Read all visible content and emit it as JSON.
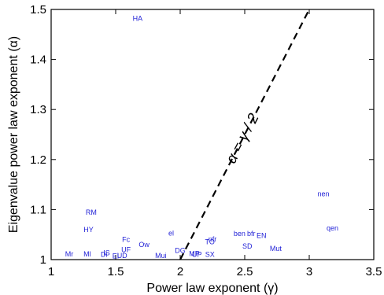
{
  "chart_data": {
    "type": "scatter",
    "xlabel": "Power law exponent (γ)",
    "ylabel": "Eigenvalue power law exponent (α)",
    "xlim": [
      1,
      3.5
    ],
    "ylim": [
      1,
      1.5
    ],
    "xticks": [
      1,
      1.5,
      2,
      2.5,
      3,
      3.5
    ],
    "xtick_labels": [
      "1",
      "1.5",
      "2",
      "2.5",
      "3",
      "3.5"
    ],
    "yticks": [
      1,
      1.1,
      1.2,
      1.3,
      1.4,
      1.5
    ],
    "ytick_labels": [
      "1",
      "1.1",
      "1.2",
      "1.3",
      "1.4",
      "1.5"
    ],
    "annotation": "α = γ / 2",
    "reference_line": {
      "x": [
        2,
        3
      ],
      "y": [
        1,
        1.5
      ],
      "style": "dashed"
    },
    "marker": "text-label",
    "point_color": "#1f1fd6",
    "points": [
      {
        "label": "HA",
        "x": 1.67,
        "y": 1.482
      },
      {
        "label": "RM",
        "x": 1.31,
        "y": 1.094
      },
      {
        "label": "HY",
        "x": 1.29,
        "y": 1.06
      },
      {
        "label": "nen",
        "x": 3.11,
        "y": 1.131
      },
      {
        "label": "qen",
        "x": 3.18,
        "y": 1.063
      },
      {
        "label": "el",
        "x": 1.93,
        "y": 1.053
      },
      {
        "label": "ben",
        "x": 2.46,
        "y": 1.052
      },
      {
        "label": "bfr",
        "x": 2.55,
        "y": 1.052
      },
      {
        "label": "EN",
        "x": 2.63,
        "y": 1.048
      },
      {
        "label": "nfr",
        "x": 2.25,
        "y": 1.041
      },
      {
        "label": "TO",
        "x": 2.23,
        "y": 1.035
      },
      {
        "label": "SD",
        "x": 2.52,
        "y": 1.027
      },
      {
        "label": "Mut",
        "x": 2.74,
        "y": 1.022
      },
      {
        "label": "Fc",
        "x": 1.58,
        "y": 1.04
      },
      {
        "label": "Ow",
        "x": 1.72,
        "y": 1.03
      },
      {
        "label": "UF",
        "x": 1.58,
        "y": 1.02
      },
      {
        "label": "DG",
        "x": 2.0,
        "y": 1.018
      },
      {
        "label": "Mr",
        "x": 1.14,
        "y": 1.011
      },
      {
        "label": "Ml",
        "x": 1.28,
        "y": 1.011
      },
      {
        "label": "IS",
        "x": 1.43,
        "y": 1.013
      },
      {
        "label": "Di",
        "x": 1.41,
        "y": 1.01
      },
      {
        "label": "UD",
        "x": 1.55,
        "y": 1.008
      },
      {
        "label": "EI",
        "x": 1.5,
        "y": 1.007
      },
      {
        "label": "Mui",
        "x": 1.85,
        "y": 1.008
      },
      {
        "label": "UP",
        "x": 2.13,
        "y": 1.01
      },
      {
        "label": "MP",
        "x": 2.11,
        "y": 1.012
      },
      {
        "label": "SX",
        "x": 2.23,
        "y": 1.01
      }
    ]
  }
}
